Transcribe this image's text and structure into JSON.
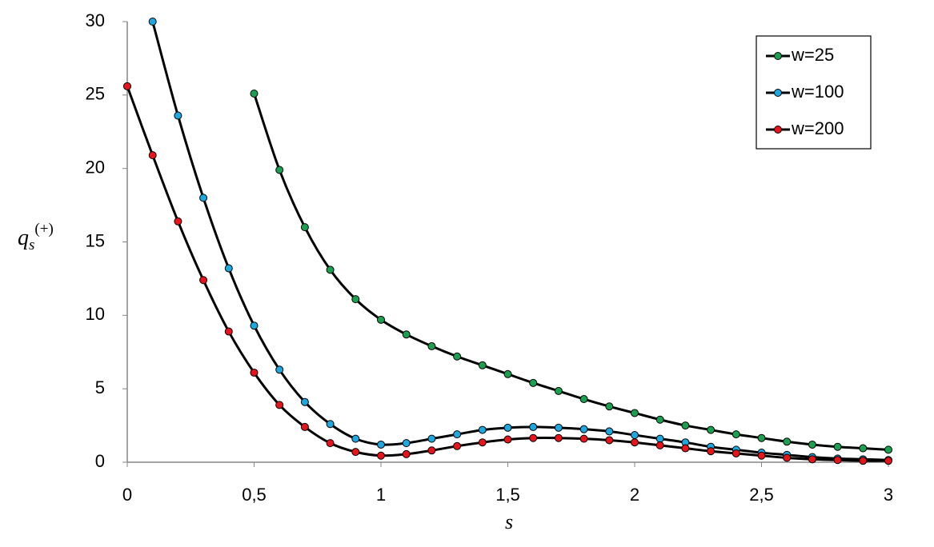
{
  "chart_data": {
    "type": "line",
    "x_label": "s",
    "y_label": {
      "base": "q",
      "sub": "s",
      "sup": "(+)"
    },
    "xlim": [
      0,
      3
    ],
    "ylim": [
      0,
      30
    ],
    "xticks": [
      0,
      {
        "value": 0.5,
        "label": "0,5"
      },
      1,
      {
        "value": 1.5,
        "label": "1,5"
      },
      2,
      {
        "value": 2.5,
        "label": "2,5"
      },
      3
    ],
    "yticks": [
      0,
      5,
      10,
      15,
      20,
      25,
      30
    ],
    "line_color": "#000000",
    "legend": "upper right",
    "series": [
      {
        "name": "w=25",
        "color": "#1aa050",
        "x": [
          0.5,
          0.6,
          0.7,
          0.8,
          0.9,
          1.0,
          1.1,
          1.2,
          1.3,
          1.4,
          1.5,
          1.6,
          1.7,
          1.8,
          1.9,
          2.0,
          2.1,
          2.2,
          2.3,
          2.4,
          2.5,
          2.6,
          2.7,
          2.8,
          2.9,
          3.0
        ],
        "values": [
          25.1,
          19.9,
          16.0,
          13.1,
          11.1,
          9.7,
          8.7,
          7.9,
          7.2,
          6.6,
          6.0,
          5.4,
          4.85,
          4.3,
          3.8,
          3.35,
          2.9,
          2.5,
          2.2,
          1.9,
          1.65,
          1.4,
          1.2,
          1.05,
          0.95,
          0.85
        ]
      },
      {
        "name": "w=100",
        "color": "#1ea8e0",
        "x": [
          0.1,
          0.2,
          0.3,
          0.4,
          0.5,
          0.6,
          0.7,
          0.8,
          0.9,
          1.0,
          1.1,
          1.2,
          1.3,
          1.4,
          1.5,
          1.6,
          1.7,
          1.8,
          1.9,
          2.0,
          2.1,
          2.2,
          2.3,
          2.4,
          2.5,
          2.6,
          2.7,
          2.8,
          2.9,
          3.0
        ],
        "values": [
          30,
          23.6,
          18.0,
          13.2,
          9.3,
          6.3,
          4.1,
          2.6,
          1.6,
          1.2,
          1.3,
          1.6,
          1.9,
          2.2,
          2.35,
          2.4,
          2.35,
          2.25,
          2.1,
          1.85,
          1.6,
          1.35,
          1.05,
          0.85,
          0.65,
          0.5,
          0.35,
          0.25,
          0.2,
          0.15
        ]
      },
      {
        "name": "w=200",
        "color": "#e8141c",
        "x": [
          0,
          0.1,
          0.2,
          0.3,
          0.4,
          0.5,
          0.6,
          0.7,
          0.8,
          0.9,
          1.0,
          1.1,
          1.2,
          1.3,
          1.4,
          1.5,
          1.6,
          1.7,
          1.8,
          1.9,
          2.0,
          2.1,
          2.2,
          2.3,
          2.4,
          2.5,
          2.6,
          2.7,
          2.8,
          2.9,
          3.0
        ],
        "values": [
          25.6,
          20.9,
          16.4,
          12.4,
          8.9,
          6.1,
          3.9,
          2.4,
          1.3,
          0.7,
          0.45,
          0.55,
          0.8,
          1.1,
          1.35,
          1.55,
          1.65,
          1.65,
          1.6,
          1.5,
          1.35,
          1.15,
          0.95,
          0.75,
          0.6,
          0.45,
          0.3,
          0.2,
          0.15,
          0.1,
          0.1
        ]
      }
    ]
  }
}
